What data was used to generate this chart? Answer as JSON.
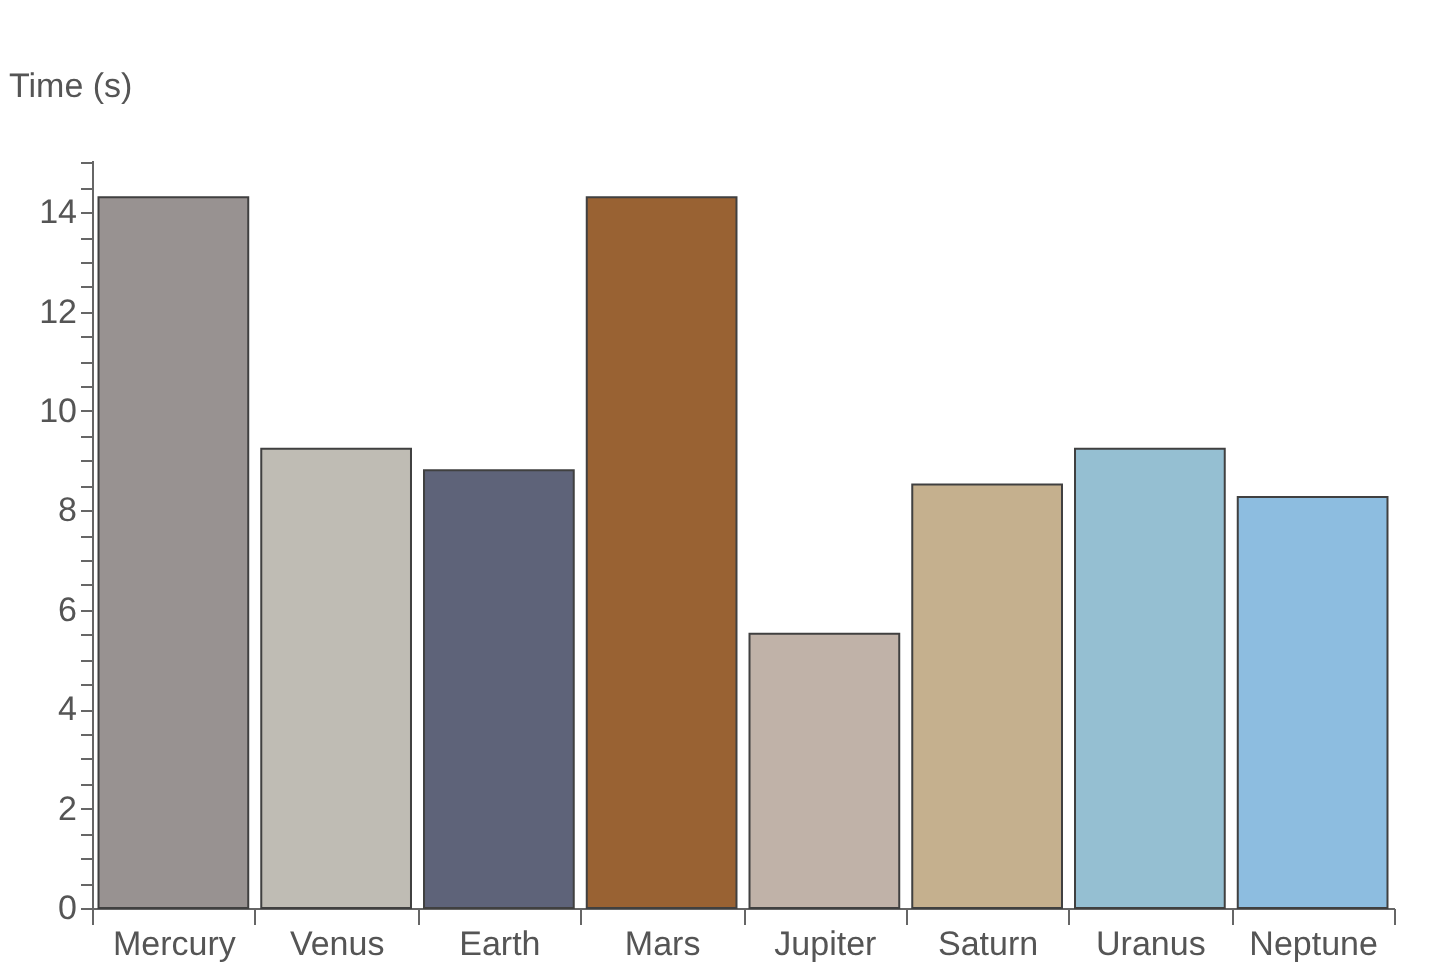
{
  "chart_data": {
    "type": "bar",
    "ylabel": "Time (s)",
    "categories": [
      "Mercury",
      "Venus",
      "Earth",
      "Mars",
      "Jupiter",
      "Saturn",
      "Uranus",
      "Neptune"
    ],
    "values": [
      14.3,
      9.24,
      8.81,
      14.3,
      5.52,
      8.52,
      9.24,
      8.27
    ],
    "colors": [
      "#989291",
      "#bfbcb4",
      "#5e6379",
      "#996233",
      "#c0b2a8",
      "#c5b08e",
      "#95bfd2",
      "#8dbde0"
    ],
    "ylim": [
      0,
      15.05
    ],
    "yticks": [
      0,
      {
        "value": 0.5,
        "label": null
      },
      2,
      {
        "value": 1,
        "label": null
      },
      {
        "value": 1.5,
        "label": null
      },
      {
        "value": 2.5,
        "label": null
      },
      {
        "value": 3,
        "label": null
      },
      {
        "value": 3.5,
        "label": null
      },
      4,
      {
        "value": 4.5,
        "label": null
      },
      {
        "value": 5,
        "label": null
      },
      {
        "value": 5.5,
        "label": null
      },
      6,
      {
        "value": 6.5,
        "label": null
      },
      {
        "value": 7,
        "label": null
      },
      {
        "value": 7.5,
        "label": null
      },
      8,
      {
        "value": 8.5,
        "label": null
      },
      {
        "value": 9,
        "label": null
      },
      {
        "value": 9.5,
        "label": null
      },
      10,
      {
        "value": 10.5,
        "label": null
      },
      {
        "value": 11,
        "label": null
      },
      {
        "value": 11.5,
        "label": null
      },
      12,
      {
        "value": 12.5,
        "label": null
      },
      {
        "value": 13,
        "label": null
      },
      {
        "value": 13.5,
        "label": null
      },
      14,
      {
        "value": 14.5,
        "label": null
      },
      {
        "value": 15,
        "label": null
      }
    ],
    "grid": false
  }
}
